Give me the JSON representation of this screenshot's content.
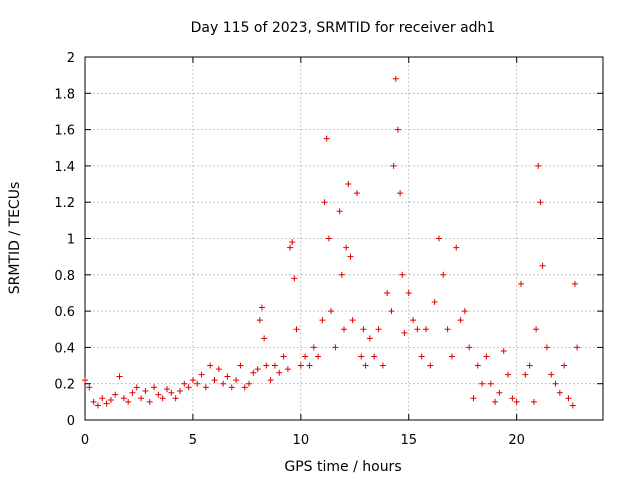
{
  "chart_data": {
    "type": "scatter",
    "title": "Day 115 of 2023, SRMTID for receiver adh1",
    "xlabel": "GPS time / hours",
    "ylabel": "SRMTID / TECUs",
    "xlim": [
      0,
      24
    ],
    "ylim": [
      0,
      2
    ],
    "xticks": [
      0,
      5,
      10,
      15,
      20
    ],
    "xtick_labels": [
      "0",
      "5",
      "10",
      "15",
      "20"
    ],
    "yticks": [
      0,
      0.2,
      0.4,
      0.6,
      0.8,
      1,
      1.2,
      1.4,
      1.6,
      1.8,
      2
    ],
    "ytick_labels": [
      "0",
      "0.2",
      "0.4",
      "0.6",
      "0.8",
      "1",
      "1.2",
      "1.4",
      "1.6",
      "1.8",
      "2"
    ],
    "grid": true,
    "marker": "+",
    "color": "#e00000",
    "series": [
      {
        "name": "adh1",
        "x": [
          0.0,
          0.2,
          0.4,
          0.6,
          0.8,
          1.0,
          1.2,
          1.4,
          1.6,
          1.8,
          2.0,
          2.2,
          2.4,
          2.6,
          2.8,
          3.0,
          3.2,
          3.4,
          3.6,
          3.8,
          4.0,
          4.2,
          4.4,
          4.6,
          4.8,
          5.0,
          5.2,
          5.4,
          5.6,
          5.8,
          6.0,
          6.2,
          6.4,
          6.6,
          6.8,
          7.0,
          7.2,
          7.4,
          7.6,
          7.8,
          8.0,
          8.1,
          8.2,
          8.3,
          8.4,
          8.6,
          8.8,
          9.0,
          9.2,
          9.4,
          9.5,
          9.6,
          9.7,
          9.8,
          10.0,
          10.2,
          10.4,
          10.6,
          10.8,
          11.0,
          11.1,
          11.2,
          11.3,
          11.4,
          11.6,
          11.8,
          11.9,
          12.0,
          12.1,
          12.2,
          12.3,
          12.4,
          12.6,
          12.8,
          12.9,
          13.0,
          13.2,
          13.4,
          13.6,
          13.8,
          14.0,
          14.2,
          14.3,
          14.4,
          14.5,
          14.6,
          14.7,
          14.8,
          15.0,
          15.2,
          15.4,
          15.6,
          15.8,
          16.0,
          16.2,
          16.4,
          16.6,
          16.8,
          17.0,
          17.2,
          17.4,
          17.6,
          17.8,
          18.0,
          18.2,
          18.4,
          18.6,
          18.8,
          19.0,
          19.2,
          19.4,
          19.6,
          19.8,
          20.0,
          20.2,
          20.4,
          20.6,
          20.8,
          20.9,
          21.0,
          21.1,
          21.2,
          21.4,
          21.6,
          21.8,
          22.0,
          22.2,
          22.4,
          22.6,
          22.7,
          22.8
        ],
        "y": [
          0.22,
          0.18,
          0.1,
          0.08,
          0.12,
          0.09,
          0.11,
          0.14,
          0.24,
          0.12,
          0.1,
          0.15,
          0.18,
          0.12,
          0.16,
          0.1,
          0.18,
          0.14,
          0.12,
          0.17,
          0.15,
          0.12,
          0.16,
          0.2,
          0.18,
          0.22,
          0.2,
          0.25,
          0.18,
          0.3,
          0.22,
          0.28,
          0.2,
          0.24,
          0.18,
          0.22,
          0.3,
          0.18,
          0.2,
          0.26,
          0.28,
          0.55,
          0.62,
          0.45,
          0.3,
          0.22,
          0.3,
          0.26,
          0.35,
          0.28,
          0.95,
          0.98,
          0.78,
          0.5,
          0.3,
          0.35,
          0.3,
          0.4,
          0.35,
          0.55,
          1.2,
          1.55,
          1.0,
          0.6,
          0.4,
          1.15,
          0.8,
          0.5,
          0.95,
          1.3,
          0.9,
          0.55,
          1.25,
          0.35,
          0.5,
          0.3,
          0.45,
          0.35,
          0.5,
          0.3,
          0.7,
          0.6,
          1.4,
          1.88,
          1.6,
          1.25,
          0.8,
          0.48,
          0.7,
          0.55,
          0.5,
          0.35,
          0.5,
          0.3,
          0.65,
          1.0,
          0.8,
          0.5,
          0.35,
          0.95,
          0.55,
          0.6,
          0.4,
          0.12,
          0.3,
          0.2,
          0.35,
          0.2,
          0.1,
          0.15,
          0.38,
          0.25,
          0.12,
          0.1,
          0.75,
          0.25,
          0.3,
          0.1,
          0.5,
          1.4,
          1.2,
          0.85,
          0.4,
          0.25,
          0.2,
          0.15,
          0.3,
          0.12,
          0.08,
          0.75,
          0.4
        ]
      }
    ]
  }
}
